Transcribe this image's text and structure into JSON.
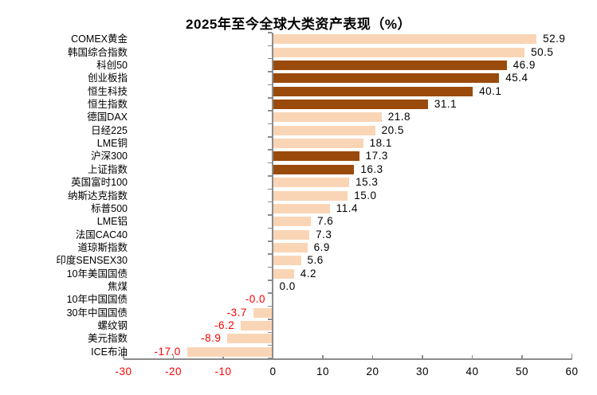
{
  "chart_data": {
    "type": "bar",
    "orientation": "horizontal",
    "title": "2025年至今全球大类资产表现（%）",
    "categories": [
      "COMEX黄金",
      "韩国综合指数",
      "科创50",
      "创业板指",
      "恒生科技",
      "恒生指数",
      "德国DAX",
      "日经225",
      "LME铜",
      "沪深300",
      "上证指数",
      "英国富时100",
      "纳斯达克指数",
      "标普500",
      "LME铝",
      "法国CAC40",
      "道琼斯指数",
      "印度SENSEX30",
      "10年美国国债",
      "焦煤",
      "10年中国国债",
      "30年中国国债",
      "螺纹钢",
      "美元指数",
      "ICE布油"
    ],
    "values": [
      52.9,
      50.5,
      46.9,
      45.4,
      40.1,
      31.1,
      21.8,
      20.5,
      18.1,
      17.3,
      16.3,
      15.3,
      15.0,
      11.4,
      7.6,
      7.3,
      6.9,
      5.6,
      4.2,
      0.0,
      0.0,
      -3.7,
      -6.2,
      -8.9,
      -17.0
    ],
    "value_labels": [
      "52.9",
      "50.5",
      "46.9",
      "45.4",
      "40.1",
      "31.1",
      "21.8",
      "20.5",
      "18.1",
      "17.3",
      "16.3",
      "15.3",
      "15.0",
      "11.4",
      "7.6",
      "7.3",
      "6.9",
      "5.6",
      "4.2",
      "0.0",
      "-0.0",
      "-3.7",
      "-6.2",
      "-8.9",
      "-17.0"
    ],
    "highlighted_dark_indices": [
      2,
      3,
      4,
      5,
      9,
      10
    ],
    "xlim": [
      -30,
      60
    ],
    "x_ticks": [
      -30,
      -20,
      -10,
      0,
      10,
      20,
      30,
      40,
      50,
      60
    ],
    "x_tick_labels": [
      "-30",
      "-20",
      "-10",
      "0",
      "10",
      "20",
      "30",
      "40",
      "50",
      "60"
    ],
    "grid": false,
    "legend": false,
    "colors": {
      "bar_light": "#FAD5B5",
      "bar_dark": "#9A4A0B",
      "negative_text": "#FF0000",
      "positive_text": "#000000",
      "axis": "#8C8C8C",
      "title_text": "#000000"
    }
  }
}
